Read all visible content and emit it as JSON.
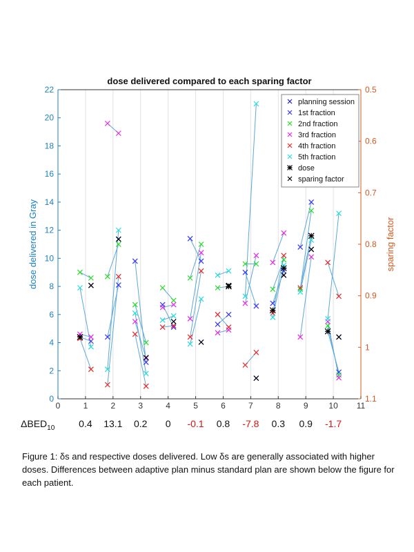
{
  "chart_data": {
    "type": "scatter",
    "title": "dose delivered compared to each sparing factor",
    "ylabel": "dose delivered in Gray",
    "y2label": "sparing factor",
    "xlim": [
      0,
      11
    ],
    "ylim": [
      0,
      22
    ],
    "y2lim": [
      0.5,
      1.1
    ],
    "y2_reversed": true,
    "x_ticks": [
      "0",
      "1",
      "2",
      "3",
      "4",
      "5",
      "6",
      "7",
      "8",
      "9",
      "10",
      "11"
    ],
    "y_ticks": [
      "0",
      "2",
      "4",
      "6",
      "8",
      "10",
      "12",
      "14",
      "16",
      "18",
      "20",
      "22"
    ],
    "y2_ticks": [
      "0.5",
      "0.6",
      "0.7",
      "0.8",
      "0.9",
      "1",
      "1.1"
    ],
    "grid": "vertical lines at integer x",
    "legend_position": "top-right",
    "legend": [
      {
        "label": "planning session",
        "color": "#1a1acc",
        "marker": "x"
      },
      {
        "label": "1st fraction",
        "color": "#3333ff",
        "marker": "x"
      },
      {
        "label": "2nd fraction",
        "color": "#22dd22",
        "marker": "x"
      },
      {
        "label": "3rd fraction",
        "color": "#ee22ee",
        "marker": "x"
      },
      {
        "label": "4th fraction",
        "color": "#ee2222",
        "marker": "x"
      },
      {
        "label": "5th fraction",
        "color": "#22dddd",
        "marker": "x"
      },
      {
        "label": "dose",
        "color": "#000000",
        "marker": "*"
      },
      {
        "label": "sparing factor",
        "color": "#000000",
        "marker": "x"
      }
    ],
    "series": [
      {
        "name": "planning session",
        "color": "#1a1acc",
        "points": [
          [
            1.2,
            0.88
          ],
          [
            2.2,
            0.79
          ],
          [
            3.2,
            1.02
          ],
          [
            4.2,
            0.95
          ],
          [
            5.2,
            0.99
          ],
          [
            6.2,
            0.88
          ],
          [
            7.2,
            1.06
          ],
          [
            8.2,
            0.86
          ],
          [
            9.2,
            0.81
          ],
          [
            10.2,
            0.98
          ]
        ]
      },
      {
        "name": "1st fraction",
        "color": "#3333ff",
        "points": [
          [
            0.8,
            4.4
          ],
          [
            1.2,
            4.1
          ],
          [
            1.8,
            4.4
          ],
          [
            2.2,
            8.1
          ],
          [
            2.8,
            9.8
          ],
          [
            3.2,
            2.6
          ],
          [
            3.8,
            6.7
          ],
          [
            4.2,
            5.1
          ],
          [
            4.8,
            11.4
          ],
          [
            5.2,
            9.8
          ],
          [
            5.8,
            5.3
          ],
          [
            6.2,
            6.0
          ],
          [
            6.8,
            9.0
          ],
          [
            7.2,
            6.6
          ],
          [
            7.8,
            6.8
          ],
          [
            8.2,
            9.1
          ],
          [
            8.8,
            10.8
          ],
          [
            9.2,
            14.0
          ],
          [
            9.8,
            4.8
          ],
          [
            10.2,
            1.9
          ]
        ]
      },
      {
        "name": "2nd fraction",
        "color": "#22dd22",
        "points": [
          [
            0.8,
            9.0
          ],
          [
            1.2,
            8.6
          ],
          [
            1.8,
            8.7
          ],
          [
            2.2,
            11.0
          ],
          [
            2.8,
            6.7
          ],
          [
            3.2,
            4.0
          ],
          [
            3.8,
            7.9
          ],
          [
            4.2,
            7.0
          ],
          [
            4.8,
            8.6
          ],
          [
            5.2,
            11.0
          ],
          [
            5.8,
            7.9
          ],
          [
            6.2,
            8.0
          ],
          [
            6.8,
            9.6
          ],
          [
            7.2,
            9.6
          ],
          [
            7.8,
            7.8
          ],
          [
            8.2,
            9.9
          ],
          [
            8.8,
            7.8
          ],
          [
            9.2,
            13.4
          ],
          [
            9.8,
            5.2
          ],
          [
            10.2,
            1.7
          ]
        ]
      },
      {
        "name": "3rd fraction",
        "color": "#ee22ee",
        "points": [
          [
            0.8,
            4.6
          ],
          [
            1.2,
            4.4
          ],
          [
            1.8,
            19.6
          ],
          [
            2.2,
            18.9
          ],
          [
            2.8,
            5.5
          ],
          [
            3.2,
            2.9
          ],
          [
            3.8,
            6.5
          ],
          [
            4.2,
            6.7
          ],
          [
            4.8,
            5.7
          ],
          [
            5.2,
            10.4
          ],
          [
            5.8,
            4.7
          ],
          [
            6.2,
            4.9
          ],
          [
            6.8,
            6.8
          ],
          [
            7.2,
            10.2
          ],
          [
            7.8,
            9.7
          ],
          [
            8.2,
            11.8
          ],
          [
            8.8,
            4.4
          ],
          [
            9.2,
            10.1
          ],
          [
            9.8,
            5.5
          ],
          [
            10.2,
            1.5
          ]
        ]
      },
      {
        "name": "4th fraction",
        "color": "#ee2222",
        "points": [
          [
            0.8,
            4.3
          ],
          [
            1.2,
            2.1
          ],
          [
            1.8,
            1.0
          ],
          [
            2.2,
            8.7
          ],
          [
            2.8,
            4.6
          ],
          [
            3.2,
            0.9
          ],
          [
            3.8,
            5.1
          ],
          [
            4.2,
            5.2
          ],
          [
            4.8,
            4.4
          ],
          [
            5.2,
            9.1
          ],
          [
            5.8,
            6.0
          ],
          [
            6.2,
            5.1
          ],
          [
            6.8,
            2.4
          ],
          [
            7.2,
            3.3
          ],
          [
            7.8,
            6.1
          ],
          [
            8.2,
            10.2
          ],
          [
            8.8,
            7.9
          ],
          [
            9.2,
            11.6
          ],
          [
            9.8,
            9.7
          ],
          [
            10.2,
            7.3
          ]
        ]
      },
      {
        "name": "5th fraction",
        "color": "#22dddd",
        "points": [
          [
            0.8,
            7.9
          ],
          [
            1.2,
            3.7
          ],
          [
            1.8,
            2.1
          ],
          [
            2.2,
            12.0
          ],
          [
            2.8,
            6.1
          ],
          [
            3.2,
            1.8
          ],
          [
            3.8,
            5.6
          ],
          [
            4.2,
            5.9
          ],
          [
            4.8,
            3.9
          ],
          [
            5.2,
            7.1
          ],
          [
            5.8,
            8.8
          ],
          [
            6.2,
            9.1
          ],
          [
            6.8,
            7.3
          ],
          [
            7.2,
            21.0
          ],
          [
            7.8,
            5.8
          ],
          [
            8.2,
            9.5
          ],
          [
            8.8,
            7.6
          ],
          [
            9.2,
            11.3
          ],
          [
            9.8,
            5.7
          ],
          [
            10.2,
            13.2
          ]
        ]
      },
      {
        "name": "dose",
        "color": "#000000",
        "points": [
          [
            0.8,
            4.4
          ],
          [
            6.2,
            8.0
          ],
          [
            7.8,
            6.3
          ],
          [
            8.2,
            9.3
          ],
          [
            9.2,
            11.6
          ],
          [
            9.8,
            4.8
          ]
        ]
      },
      {
        "name": "sparing factor",
        "color": "#000000",
        "points": [
          [
            1.2,
            0.88
          ],
          [
            2.2,
            0.79
          ],
          [
            3.2,
            1.02
          ],
          [
            4.2,
            0.95
          ],
          [
            5.2,
            0.99
          ],
          [
            6.2,
            0.88
          ],
          [
            7.2,
            1.06
          ],
          [
            8.2,
            0.86
          ],
          [
            9.2,
            0.81
          ],
          [
            10.2,
            0.98
          ]
        ]
      }
    ],
    "delta_bed": {
      "label_main": "ΔBED",
      "label_sub": "10",
      "values": [
        {
          "x": 1,
          "text": "0.4",
          "color": "#111111"
        },
        {
          "x": 2,
          "text": "13.1",
          "color": "#111111"
        },
        {
          "x": 3,
          "text": "0.2",
          "color": "#111111"
        },
        {
          "x": 4,
          "text": "0",
          "color": "#111111"
        },
        {
          "x": 5,
          "text": "-0.1",
          "color": "#e01010"
        },
        {
          "x": 6,
          "text": "0.8",
          "color": "#111111"
        },
        {
          "x": 7,
          "text": "-7.8",
          "color": "#e01010"
        },
        {
          "x": 8,
          "text": "0.3",
          "color": "#111111"
        },
        {
          "x": 9,
          "text": "0.9",
          "color": "#111111"
        },
        {
          "x": 10,
          "text": "-1.7",
          "color": "#e01010"
        }
      ]
    }
  },
  "caption": "Figure 1: δs and respective doses delivered. Low δs are generally associated with higher doses. Differences between adaptive plan minus standard plan are shown below the figure for each patient.",
  "colors": {
    "left_axis": "#1a7fc1",
    "right_axis": "#d9581f",
    "connector": "#5aa8d8"
  }
}
